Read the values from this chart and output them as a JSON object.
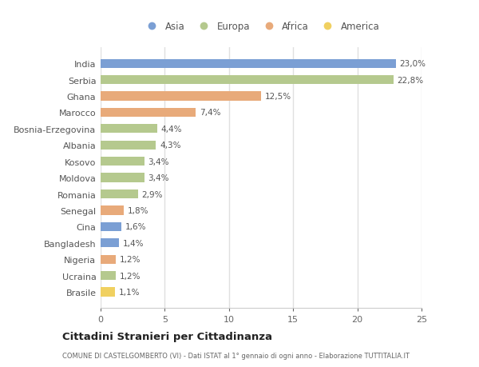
{
  "countries": [
    "India",
    "Serbia",
    "Ghana",
    "Marocco",
    "Bosnia-Erzegovina",
    "Albania",
    "Kosovo",
    "Moldova",
    "Romania",
    "Senegal",
    "Cina",
    "Bangladesh",
    "Nigeria",
    "Ucraina",
    "Brasile"
  ],
  "values": [
    23.0,
    22.8,
    12.5,
    7.4,
    4.4,
    4.3,
    3.4,
    3.4,
    2.9,
    1.8,
    1.6,
    1.4,
    1.2,
    1.2,
    1.1
  ],
  "labels": [
    "23,0%",
    "22,8%",
    "12,5%",
    "7,4%",
    "4,4%",
    "4,3%",
    "3,4%",
    "3,4%",
    "2,9%",
    "1,8%",
    "1,6%",
    "1,4%",
    "1,2%",
    "1,2%",
    "1,1%"
  ],
  "continents": [
    "Asia",
    "Europa",
    "Africa",
    "Africa",
    "Europa",
    "Europa",
    "Europa",
    "Europa",
    "Europa",
    "Africa",
    "Asia",
    "Asia",
    "Africa",
    "Europa",
    "America"
  ],
  "colors": {
    "Asia": "#7b9fd4",
    "Europa": "#b5c98e",
    "Africa": "#e8aa7a",
    "America": "#f0d060"
  },
  "legend_order": [
    "Asia",
    "Europa",
    "Africa",
    "America"
  ],
  "title": "Cittadini Stranieri per Cittadinanza",
  "subtitle": "COMUNE DI CASTELGOMBERTO (VI) - Dati ISTAT al 1° gennaio di ogni anno - Elaborazione TUTTITALIA.IT",
  "xlim": [
    0,
    25
  ],
  "xticks": [
    0,
    5,
    10,
    15,
    20,
    25
  ],
  "background_color": "#ffffff",
  "plot_bg_color": "#ffffff",
  "grid_color": "#e0e0e0"
}
